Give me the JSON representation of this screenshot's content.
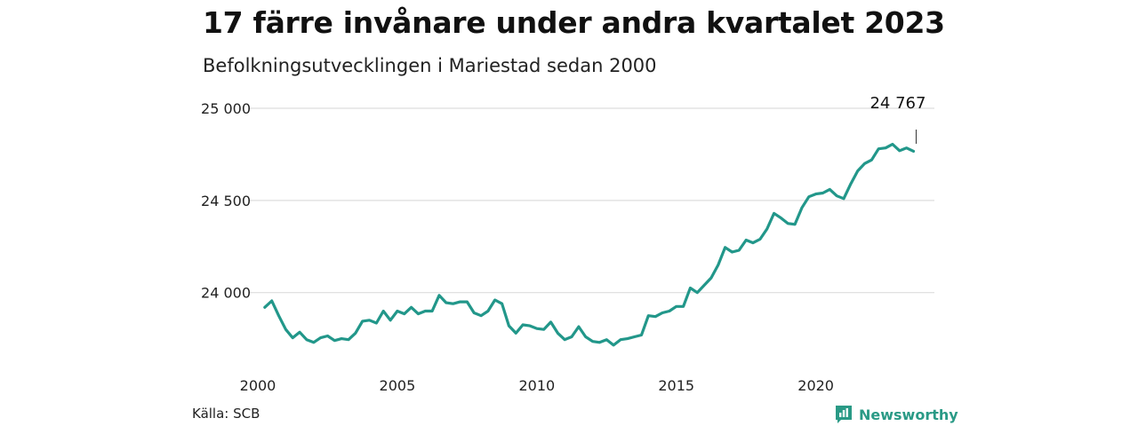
{
  "title": "17 färre invånare under andra kvartalet 2023",
  "subtitle": "Befolkningsutvecklingen i Mariestad sedan 2000",
  "source": "Källa: SCB",
  "brand": "Newsworthy",
  "colors": {
    "line": "#22978a",
    "brand": "#2a9a86",
    "grid": "#dddddd"
  },
  "chart_data": {
    "type": "line",
    "xlabel": "",
    "ylabel": "",
    "ylim": [
      23700,
      25000
    ],
    "yticks": [
      24000,
      24500,
      25000
    ],
    "ytick_labels": [
      "24 000",
      "24 500",
      "25 000"
    ],
    "xticks": [
      2000,
      2005,
      2010,
      2015,
      2020
    ],
    "xtick_labels": [
      "2000",
      "2005",
      "2010",
      "2015",
      "2020"
    ],
    "annotation": {
      "text": "24 767",
      "x": 2023.5,
      "y": 24767
    },
    "x": [
      2000.25,
      2000.5,
      2000.75,
      2001.0,
      2001.25,
      2001.5,
      2001.75,
      2002.0,
      2002.25,
      2002.5,
      2002.75,
      2003.0,
      2003.25,
      2003.5,
      2003.75,
      2004.0,
      2004.25,
      2004.5,
      2004.75,
      2005.0,
      2005.25,
      2005.5,
      2005.75,
      2006.0,
      2006.25,
      2006.5,
      2006.75,
      2007.0,
      2007.25,
      2007.5,
      2007.75,
      2008.0,
      2008.25,
      2008.5,
      2008.75,
      2009.0,
      2009.25,
      2009.5,
      2009.75,
      2010.0,
      2010.25,
      2010.5,
      2010.75,
      2011.0,
      2011.25,
      2011.5,
      2011.75,
      2012.0,
      2012.25,
      2012.5,
      2012.75,
      2013.0,
      2013.25,
      2013.5,
      2013.75,
      2014.0,
      2014.25,
      2014.5,
      2014.75,
      2015.0,
      2015.25,
      2015.5,
      2015.75,
      2016.0,
      2016.25,
      2016.5,
      2016.75,
      2017.0,
      2017.25,
      2017.5,
      2017.75,
      2018.0,
      2018.25,
      2018.5,
      2018.75,
      2019.0,
      2019.25,
      2019.5,
      2019.75,
      2020.0,
      2020.25,
      2020.5,
      2020.75,
      2021.0,
      2021.25,
      2021.5,
      2021.75,
      2022.0,
      2022.25,
      2022.5,
      2022.75,
      2023.0,
      2023.25,
      2023.5
    ],
    "series": [
      {
        "values": [
          23920,
          23955,
          23875,
          23800,
          23755,
          23785,
          23745,
          23730,
          23755,
          23765,
          23740,
          23750,
          23745,
          23780,
          23845,
          23850,
          23835,
          23900,
          23850,
          23900,
          23885,
          23920,
          23885,
          23900,
          23900,
          23985,
          23945,
          23940,
          23950,
          23950,
          23890,
          23875,
          23900,
          23960,
          23940,
          23820,
          23780,
          23825,
          23820,
          23805,
          23800,
          23840,
          23780,
          23745,
          23760,
          23815,
          23760,
          23735,
          23730,
          23745,
          23715,
          23745,
          23750,
          23760,
          23770,
          23875,
          23870,
          23890,
          23900,
          23925,
          23925,
          24025,
          24000,
          24040,
          24080,
          24150,
          24245,
          24220,
          24230,
          24285,
          24270,
          24290,
          24345,
          24430,
          24405,
          24375,
          24370,
          24460,
          24520,
          24535,
          24540,
          24560,
          24525,
          24510,
          24590,
          24660,
          24700,
          24720,
          24780,
          24785,
          24805,
          24770,
          24785,
          24767
        ]
      }
    ]
  }
}
